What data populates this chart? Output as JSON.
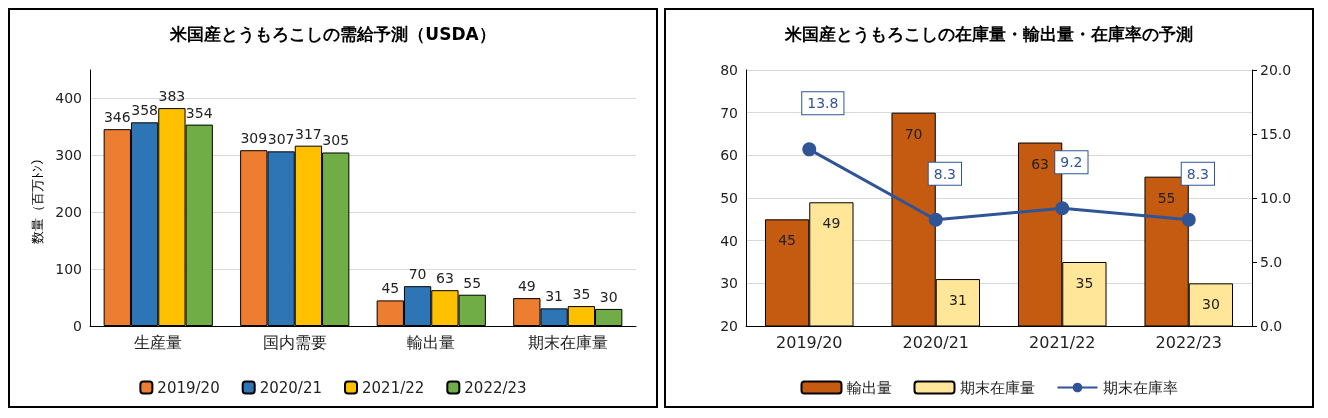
{
  "chart_data": [
    {
      "type": "bar",
      "title": "米国産とうもろこしの需給予測（USDA）",
      "ylabel": "数量（百万ﾄﾝ）",
      "categories": [
        "生産量",
        "国内需要",
        "輸出量",
        "期末在庫量"
      ],
      "series": [
        {
          "name": "2019/20",
          "color": "#ed7d31",
          "values": [
            346,
            309,
            45,
            49
          ]
        },
        {
          "name": "2020/21",
          "color": "#2e75b6",
          "values": [
            358,
            307,
            70,
            31
          ]
        },
        {
          "name": "2021/22",
          "color": "#ffc000",
          "values": [
            383,
            317,
            63,
            35
          ]
        },
        {
          "name": "2022/23",
          "color": "#70ad47",
          "values": [
            354,
            305,
            55,
            30
          ]
        }
      ],
      "ylim": [
        0,
        450
      ],
      "yticks": [
        0,
        100,
        200,
        300,
        400
      ],
      "grid": "y",
      "legend": "bottom",
      "data_labels": true
    },
    {
      "type": "bar",
      "title": "米国産とうもろこしの在庫量・輸出量・在庫率の予測",
      "categories": [
        "2019/20",
        "2020/21",
        "2021/22",
        "2022/23"
      ],
      "series": [
        {
          "name": "輸出量",
          "color": "#c55a11",
          "values": [
            45,
            70,
            63,
            55
          ]
        },
        {
          "name": "期末在庫量",
          "color": "#ffe699",
          "values": [
            49,
            31,
            35,
            30
          ]
        },
        {
          "name": "期末在庫率",
          "type": "line",
          "axis": "y2",
          "color": "#2f5597",
          "values": [
            13.8,
            8.3,
            9.2,
            8.3
          ]
        }
      ],
      "ylim": [
        20,
        80
      ],
      "yticks": [
        20,
        30,
        40,
        50,
        60,
        70,
        80
      ],
      "y2lim": [
        0,
        20
      ],
      "y2ticks": [
        {
          "value": 0,
          "label": "0.0"
        },
        {
          "value": 5,
          "label": "5.0"
        },
        {
          "value": 10,
          "label": "10.0"
        },
        {
          "value": 15,
          "label": "15.0"
        },
        {
          "value": 20,
          "label": "20.0"
        }
      ],
      "grid": "y",
      "legend": "bottom",
      "marker": "circle",
      "line_style": "solid",
      "data_labels": true
    }
  ]
}
